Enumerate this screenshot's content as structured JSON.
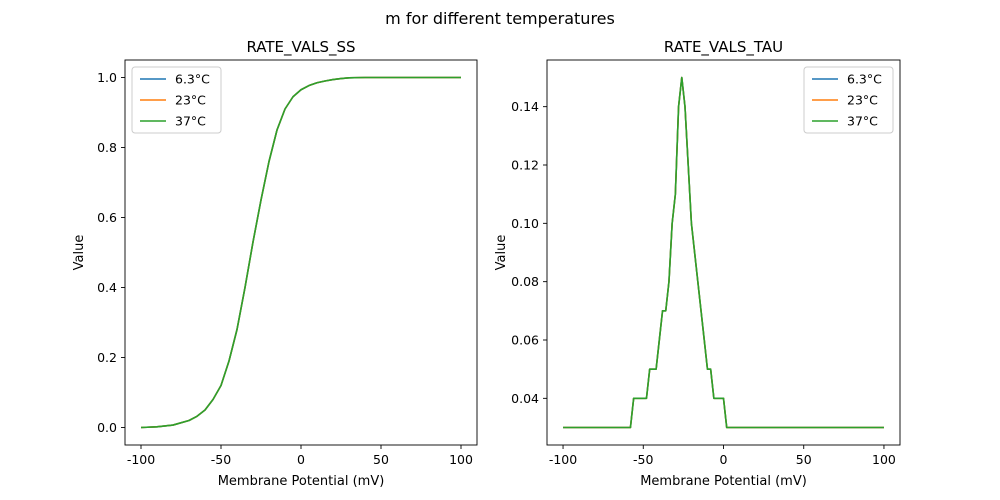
{
  "figure": {
    "suptitle": "m for different temperatures"
  },
  "chart_data": [
    {
      "type": "line",
      "title": "RATE_VALS_SS",
      "xlabel": "Membrane Potential (mV)",
      "ylabel": "Value",
      "xlim": [
        -110,
        110
      ],
      "ylim": [
        -0.05,
        1.05
      ],
      "xticks": [
        -100,
        -50,
        0,
        50,
        100
      ],
      "yticks": [
        0.0,
        0.2,
        0.4,
        0.6,
        0.8,
        1.0
      ],
      "ytick_decimals": 1,
      "grid": false,
      "legend_position": "top-left",
      "series": [
        {
          "name": "6.3°C",
          "color": "#1f77b4",
          "x": [
            -100,
            -90,
            -80,
            -70,
            -65,
            -60,
            -55,
            -50,
            -45,
            -40,
            -35,
            -30,
            -25,
            -20,
            -15,
            -10,
            -5,
            0,
            5,
            10,
            15,
            20,
            25,
            30,
            40,
            50,
            60,
            80,
            100
          ],
          "y": [
            0.0,
            0.002,
            0.007,
            0.02,
            0.032,
            0.05,
            0.08,
            0.12,
            0.19,
            0.28,
            0.4,
            0.53,
            0.65,
            0.76,
            0.85,
            0.91,
            0.945,
            0.965,
            0.977,
            0.985,
            0.99,
            0.994,
            0.997,
            0.999,
            1.0,
            1.0,
            1.0,
            1.0,
            1.0
          ]
        },
        {
          "name": "23°C",
          "color": "#ff7f0e",
          "x": [
            -100,
            -90,
            -80,
            -70,
            -65,
            -60,
            -55,
            -50,
            -45,
            -40,
            -35,
            -30,
            -25,
            -20,
            -15,
            -10,
            -5,
            0,
            5,
            10,
            15,
            20,
            25,
            30,
            40,
            50,
            60,
            80,
            100
          ],
          "y": [
            0.0,
            0.002,
            0.007,
            0.02,
            0.032,
            0.05,
            0.08,
            0.12,
            0.19,
            0.28,
            0.4,
            0.53,
            0.65,
            0.76,
            0.85,
            0.91,
            0.945,
            0.965,
            0.977,
            0.985,
            0.99,
            0.994,
            0.997,
            0.999,
            1.0,
            1.0,
            1.0,
            1.0,
            1.0
          ]
        },
        {
          "name": "37°C",
          "color": "#2ca02c",
          "x": [
            -100,
            -90,
            -80,
            -70,
            -65,
            -60,
            -55,
            -50,
            -45,
            -40,
            -35,
            -30,
            -25,
            -20,
            -15,
            -10,
            -5,
            0,
            5,
            10,
            15,
            20,
            25,
            30,
            40,
            50,
            60,
            80,
            100
          ],
          "y": [
            0.0,
            0.002,
            0.007,
            0.02,
            0.032,
            0.05,
            0.08,
            0.12,
            0.19,
            0.28,
            0.4,
            0.53,
            0.65,
            0.76,
            0.85,
            0.91,
            0.945,
            0.965,
            0.977,
            0.985,
            0.99,
            0.994,
            0.997,
            0.999,
            1.0,
            1.0,
            1.0,
            1.0,
            1.0
          ]
        }
      ]
    },
    {
      "type": "line",
      "title": "RATE_VALS_TAU",
      "xlabel": "Membrane Potential (mV)",
      "ylabel": "Value",
      "xlim": [
        -110,
        110
      ],
      "ylim": [
        0.024,
        0.156
      ],
      "xticks": [
        -100,
        -50,
        0,
        50,
        100
      ],
      "yticks": [
        0.04,
        0.06,
        0.08,
        0.1,
        0.12,
        0.14
      ],
      "ytick_decimals": 2,
      "grid": false,
      "legend_position": "top-right",
      "series": [
        {
          "name": "6.3°C",
          "color": "#1f77b4",
          "x": [
            -100,
            -58,
            -56,
            -48,
            -46,
            -42,
            -40,
            -38,
            -36,
            -34,
            -32,
            -30,
            -28,
            -26,
            -24,
            -22,
            -20,
            -18,
            -16,
            -14,
            -12,
            -10,
            -8,
            -6,
            -4,
            -2,
            0,
            2,
            4,
            100
          ],
          "y": [
            0.03,
            0.03,
            0.04,
            0.04,
            0.05,
            0.05,
            0.06,
            0.07,
            0.07,
            0.08,
            0.1,
            0.11,
            0.14,
            0.15,
            0.14,
            0.12,
            0.1,
            0.09,
            0.08,
            0.07,
            0.06,
            0.05,
            0.05,
            0.04,
            0.04,
            0.04,
            0.04,
            0.03,
            0.03,
            0.03
          ]
        },
        {
          "name": "23°C",
          "color": "#ff7f0e",
          "x": [
            -100,
            -58,
            -56,
            -48,
            -46,
            -42,
            -40,
            -38,
            -36,
            -34,
            -32,
            -30,
            -28,
            -26,
            -24,
            -22,
            -20,
            -18,
            -16,
            -14,
            -12,
            -10,
            -8,
            -6,
            -4,
            -2,
            0,
            2,
            4,
            100
          ],
          "y": [
            0.03,
            0.03,
            0.04,
            0.04,
            0.05,
            0.05,
            0.06,
            0.07,
            0.07,
            0.08,
            0.1,
            0.11,
            0.14,
            0.15,
            0.14,
            0.12,
            0.1,
            0.09,
            0.08,
            0.07,
            0.06,
            0.05,
            0.05,
            0.04,
            0.04,
            0.04,
            0.04,
            0.03,
            0.03,
            0.03
          ]
        },
        {
          "name": "37°C",
          "color": "#2ca02c",
          "x": [
            -100,
            -58,
            -56,
            -48,
            -46,
            -42,
            -40,
            -38,
            -36,
            -34,
            -32,
            -30,
            -28,
            -26,
            -24,
            -22,
            -20,
            -18,
            -16,
            -14,
            -12,
            -10,
            -8,
            -6,
            -4,
            -2,
            0,
            2,
            4,
            100
          ],
          "y": [
            0.03,
            0.03,
            0.04,
            0.04,
            0.05,
            0.05,
            0.06,
            0.07,
            0.07,
            0.08,
            0.1,
            0.11,
            0.14,
            0.15,
            0.14,
            0.12,
            0.1,
            0.09,
            0.08,
            0.07,
            0.06,
            0.05,
            0.05,
            0.04,
            0.04,
            0.04,
            0.04,
            0.03,
            0.03,
            0.03
          ]
        }
      ]
    }
  ]
}
